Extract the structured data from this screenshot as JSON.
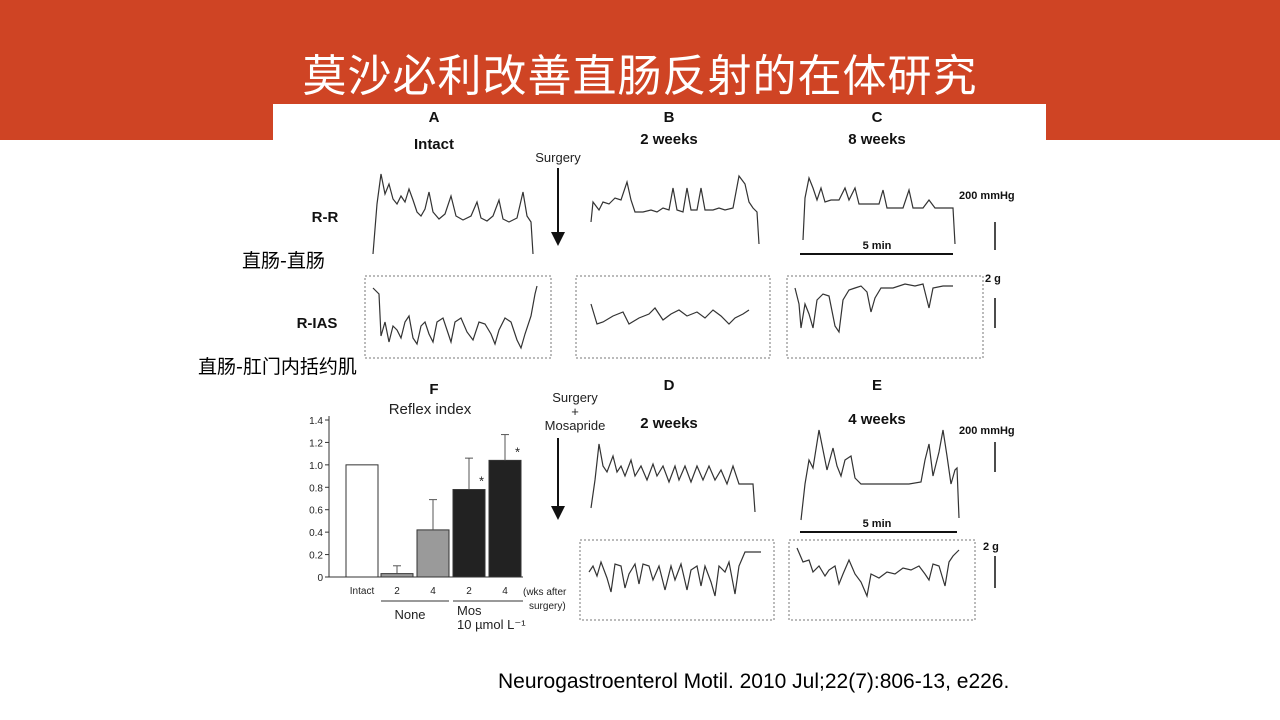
{
  "slide": {
    "title": "莫沙必利改善直肠反射的在体研究",
    "label_rr_cn": "直肠-直肠",
    "label_rias_cn": "直肠-肛门内括约肌",
    "citation": "Neurogastroenterol Motil. 2010 Jul;22(7):806-13, e226."
  },
  "colors": {
    "banner": "#cf4424",
    "title_text": "#ffffff"
  },
  "figure": {
    "panelA_letter": "A",
    "panelA_sub": "Intact",
    "panelB_letter": "B",
    "panelB_sub": "2 weeks",
    "panelC_letter": "C",
    "panelC_sub": "8 weeks",
    "panelD_letter": "D",
    "panelD_sub": "2 weeks",
    "panelE_letter": "E",
    "panelE_sub": "4 weeks",
    "panelF_letter": "F",
    "surgery_label": "Surgery",
    "surgery_mos_line1": "Surgery",
    "surgery_mos_line2": "+",
    "surgery_mos_line3": "Mosapride",
    "row_rr": "R-R",
    "row_rias": "R-IAS",
    "scale_pressure_top": "200 mmHg",
    "scale_pressure_bottom": "200 mmHg",
    "scale_force_top": "2 g",
    "scale_force_bottom": "2 g",
    "scale_time_top": "5 min",
    "scale_time_bottom": "5 min"
  },
  "chart_data": {
    "type": "bar",
    "title": "Reflex index",
    "categories": [
      "Intact",
      "2",
      "4",
      "2",
      "4"
    ],
    "values": [
      1.0,
      0.03,
      0.42,
      0.78,
      1.04
    ],
    "errors": [
      0,
      0.07,
      0.27,
      0.28,
      0.23
    ],
    "bar_colors": [
      "#ffffff",
      "#9a9a9a",
      "#9a9a9a",
      "#222222",
      "#222222"
    ],
    "significance": [
      "",
      "",
      "",
      "*",
      "*"
    ],
    "groups": [
      {
        "name": "None",
        "categories": [
          1,
          2
        ]
      },
      {
        "name_line1": "Mos",
        "name_line2": "10 µmol L⁻¹",
        "categories": [
          3,
          4
        ]
      }
    ],
    "x_unit_line1": "(wks after",
    "x_unit_line2": "surgery)",
    "ylim": [
      0,
      1.4
    ],
    "yticks": [
      "0",
      "0.2",
      "0.4",
      "0.6",
      "0.8",
      "1.0",
      "1.2",
      "1.4"
    ],
    "grid": false
  }
}
